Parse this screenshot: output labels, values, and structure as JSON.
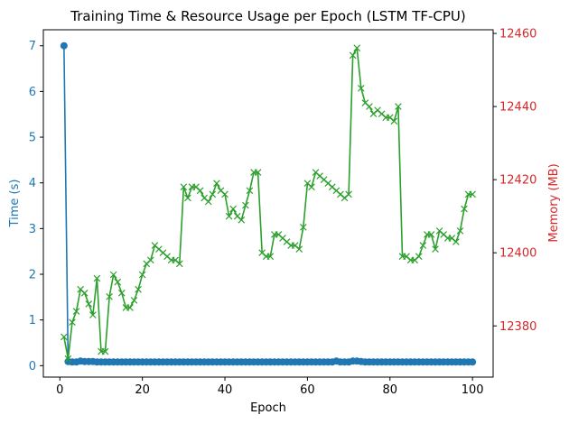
{
  "chart_data": {
    "type": "line",
    "title": "Training Time & Resource Usage per Epoch (LSTM TF-CPU)",
    "xlabel": "Epoch",
    "ylabel_left": "Time (s)",
    "ylabel_right": "Memory (MB)",
    "xlim": [
      -4,
      105
    ],
    "ylim_left": [
      -0.25,
      7.35
    ],
    "ylim_right": [
      12366,
      12461
    ],
    "x_ticks": [
      0,
      20,
      40,
      60,
      80,
      100
    ],
    "y_ticks_left": [
      0,
      1,
      2,
      3,
      4,
      5,
      6,
      7
    ],
    "y_ticks_right": [
      12380,
      12400,
      12420,
      12440,
      12460
    ],
    "grid": false,
    "colors": {
      "time": "#1f77b4",
      "memory": "#2ca02c",
      "left_axis": "#1f77b4",
      "right_axis": "#d62728"
    },
    "series": [
      {
        "axis": "left",
        "marker": "circle",
        "values": [
          7.0,
          0.09,
          0.08,
          0.08,
          0.1,
          0.09,
          0.09,
          0.09,
          0.08,
          0.08,
          0.08,
          0.08,
          0.08,
          0.08,
          0.08,
          0.08,
          0.08,
          0.08,
          0.08,
          0.08,
          0.08,
          0.08,
          0.08,
          0.08,
          0.08,
          0.08,
          0.08,
          0.08,
          0.08,
          0.08,
          0.08,
          0.08,
          0.08,
          0.08,
          0.08,
          0.08,
          0.08,
          0.08,
          0.08,
          0.08,
          0.08,
          0.08,
          0.08,
          0.08,
          0.08,
          0.08,
          0.08,
          0.08,
          0.08,
          0.08,
          0.08,
          0.08,
          0.08,
          0.08,
          0.08,
          0.08,
          0.08,
          0.08,
          0.08,
          0.08,
          0.08,
          0.08,
          0.08,
          0.08,
          0.08,
          0.08,
          0.1,
          0.08,
          0.08,
          0.08,
          0.1,
          0.1,
          0.09,
          0.08,
          0.08,
          0.08,
          0.08,
          0.08,
          0.08,
          0.08,
          0.08,
          0.08,
          0.08,
          0.08,
          0.08,
          0.08,
          0.08,
          0.08,
          0.08,
          0.08,
          0.08,
          0.08,
          0.08,
          0.08,
          0.08,
          0.08,
          0.08,
          0.08,
          0.08,
          0.08
        ]
      },
      {
        "axis": "right",
        "marker": "x",
        "values": [
          12377,
          12371,
          12381,
          12384,
          12390,
          12389,
          12386,
          12383,
          12393,
          12373,
          12373,
          12388,
          12394,
          12392,
          12389,
          12385,
          12385,
          12387,
          12390,
          12394,
          12397,
          12398,
          12402,
          12401,
          12400,
          12399,
          12398,
          12398,
          12397,
          12418,
          12415,
          12418,
          12418,
          12417,
          12415,
          12414,
          12416,
          12419,
          12417,
          12416,
          12410,
          12412,
          12410,
          12409,
          12413,
          12417,
          12422,
          12422,
          12400,
          12399,
          12399,
          12405,
          12405,
          12404,
          12403,
          12402,
          12402,
          12401,
          12407,
          12419,
          12418,
          12422,
          12421,
          12420,
          12419,
          12418,
          12417,
          12416,
          12415,
          12416,
          12454,
          12456,
          12445,
          12441,
          12440,
          12438,
          12439,
          12438,
          12437,
          12437,
          12436,
          12440,
          12399,
          12399,
          12398,
          12398,
          12399,
          12402,
          12405,
          12405,
          12401,
          12406,
          12405,
          12404,
          12404,
          12403,
          12406,
          12412,
          12416,
          12416
        ]
      }
    ]
  }
}
